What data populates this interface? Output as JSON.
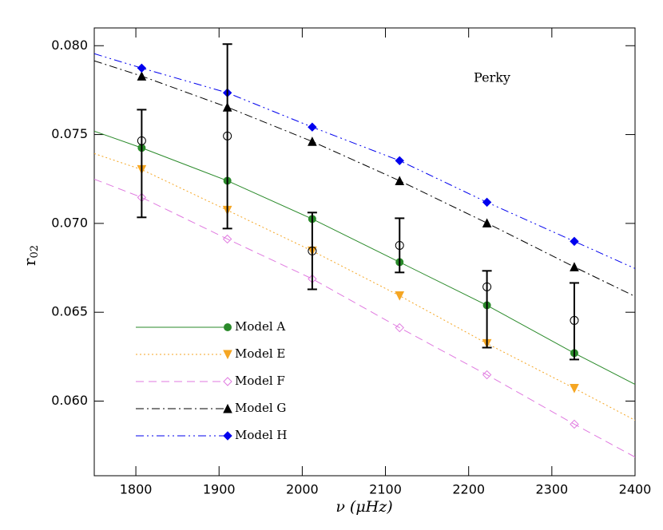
{
  "chart_data": {
    "type": "line",
    "annotation": "Perky",
    "xlabel": "ν (μHz)",
    "ylabel": {
      "main": "r",
      "sub": "02"
    },
    "xlim": [
      1750,
      2400
    ],
    "ylim": [
      0.0558,
      0.081
    ],
    "xticks": [
      1800,
      1900,
      2000,
      2100,
      2200,
      2300,
      2400
    ],
    "yticks": [
      {
        "value": 0.06,
        "label": "0.060"
      },
      0.065,
      {
        "value": 0.07,
        "label": "0.070"
      },
      0.075,
      {
        "value": 0.08,
        "label": "0.080"
      }
    ],
    "legend": "lower left",
    "x": [
      1750,
      1807,
      1910,
      2012,
      2117,
      2222,
      2327,
      2400
    ],
    "series": [
      {
        "name": "Model A",
        "color": "#2a8a2a",
        "dash": "solid",
        "marker": "circle",
        "values": [
          0.07519,
          0.07425,
          0.0724,
          0.07025,
          0.06782,
          0.06539,
          0.0627,
          0.06094
        ]
      },
      {
        "name": "Model E",
        "color": "#f5a623",
        "dash": "dotted",
        "marker": "triangle-down",
        "values": [
          0.07393,
          0.07303,
          0.07074,
          0.06845,
          0.06593,
          0.06324,
          0.06072,
          0.05892
        ]
      },
      {
        "name": "Model F",
        "color": "#e07ae0",
        "dash": "dashed",
        "marker": "diamond-open",
        "values": [
          0.07249,
          0.07146,
          0.06912,
          0.06688,
          0.06413,
          0.06148,
          0.0587,
          0.05685
        ]
      },
      {
        "name": "Model G",
        "color": "#000000",
        "dash": "dash-dot",
        "marker": "triangle",
        "values": [
          0.07915,
          0.07829,
          0.07654,
          0.07461,
          0.0724,
          0.07002,
          0.06755,
          0.06589
        ]
      },
      {
        "name": "Model H",
        "color": "#0000ee",
        "dash": "dash-dot-dot",
        "marker": "diamond",
        "values": [
          0.07955,
          0.07874,
          0.07735,
          0.07542,
          0.07353,
          0.07119,
          0.06899,
          0.06746
        ]
      }
    ],
    "observed": {
      "color": "#000000",
      "marker": "circle-open",
      "values": [
        null,
        0.07465,
        0.07492,
        0.06845,
        0.06876,
        0.06643,
        0.06454,
        null
      ],
      "yerr_minus": [
        null,
        0.00431,
        0.00521,
        0.00216,
        0.00152,
        0.00342,
        0.0022,
        null
      ],
      "yerr_plus": [
        null,
        0.00175,
        0.00517,
        0.00216,
        0.00153,
        0.0009,
        0.00211,
        null
      ]
    }
  }
}
